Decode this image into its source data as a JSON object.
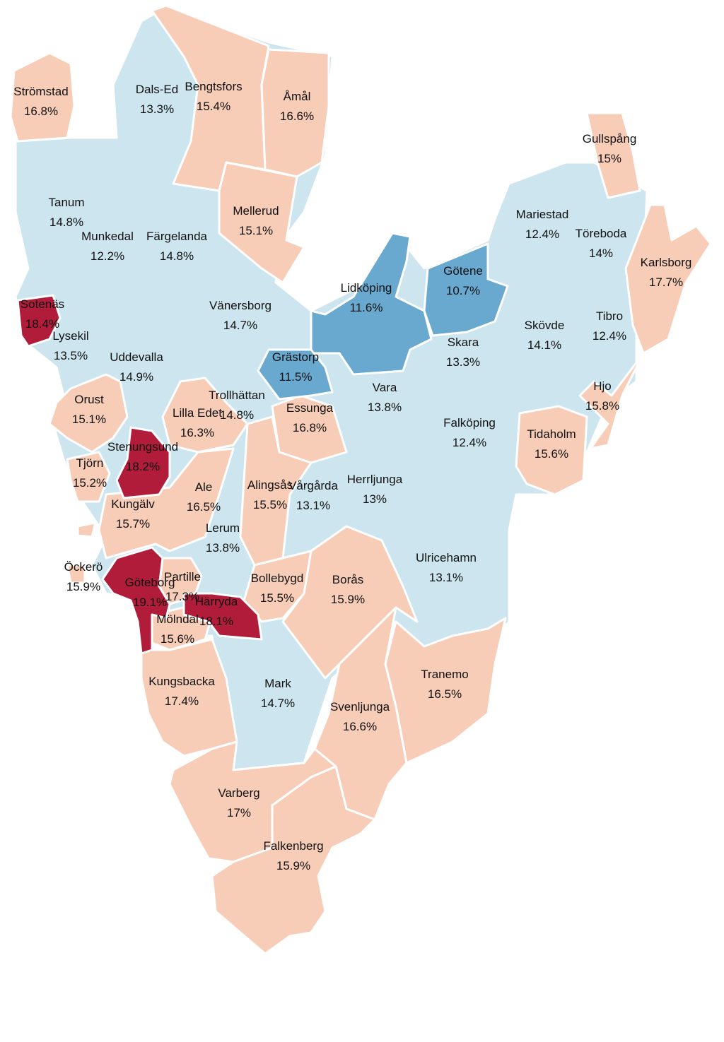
{
  "colors": {
    "very_high": "#b01c39",
    "high": "#f8cdb8",
    "low": "#cce5ee",
    "very_low": "#69a9cf",
    "label": "#111111",
    "background": "#ffffff"
  },
  "municipalities": [
    {
      "id": "stromstad",
      "name": "Strömstad",
      "value": "16.8%",
      "tier": "high"
    },
    {
      "id": "dalsed",
      "name": "Dals-Ed",
      "value": "13.3%",
      "tier": "low"
    },
    {
      "id": "bengtsfors",
      "name": "Bengtsfors",
      "value": "15.4%",
      "tier": "high"
    },
    {
      "id": "amal",
      "name": "Åmål",
      "value": "16.6%",
      "tier": "high"
    },
    {
      "id": "gullspang",
      "name": "Gullspång",
      "value": "15%",
      "tier": "high"
    },
    {
      "id": "tanum",
      "name": "Tanum",
      "value": "14.8%",
      "tier": "low"
    },
    {
      "id": "munkedal",
      "name": "Munkedal",
      "value": "12.2%",
      "tier": "low"
    },
    {
      "id": "fargelanda",
      "name": "Färgelanda",
      "value": "14.8%",
      "tier": "low"
    },
    {
      "id": "mellerud",
      "name": "Mellerud",
      "value": "15.1%",
      "tier": "high"
    },
    {
      "id": "mariestad",
      "name": "Mariestad",
      "value": "12.4%",
      "tier": "low"
    },
    {
      "id": "toreboda",
      "name": "Töreboda",
      "value": "14%",
      "tier": "low"
    },
    {
      "id": "karlsborg",
      "name": "Karlsborg",
      "value": "17.7%",
      "tier": "high"
    },
    {
      "id": "sotenas",
      "name": "Sotenäs",
      "value": "18.4%",
      "tier": "very_high"
    },
    {
      "id": "lysekil",
      "name": "Lysekil",
      "value": "13.5%",
      "tier": "low"
    },
    {
      "id": "vanersborg",
      "name": "Vänersborg",
      "value": "14.7%",
      "tier": "low"
    },
    {
      "id": "lidkoping",
      "name": "Lidköping",
      "value": "11.6%",
      "tier": "very_low"
    },
    {
      "id": "gotene",
      "name": "Götene",
      "value": "10.7%",
      "tier": "very_low"
    },
    {
      "id": "tibro",
      "name": "Tibro",
      "value": "12.4%",
      "tier": "low"
    },
    {
      "id": "skovde",
      "name": "Skövde",
      "value": "14.1%",
      "tier": "low"
    },
    {
      "id": "skara",
      "name": "Skara",
      "value": "13.3%",
      "tier": "low"
    },
    {
      "id": "uddevalla",
      "name": "Uddevalla",
      "value": "14.9%",
      "tier": "low"
    },
    {
      "id": "grastorp",
      "name": "Grästorp",
      "value": "11.5%",
      "tier": "very_low"
    },
    {
      "id": "vara",
      "name": "Vara",
      "value": "13.8%",
      "tier": "low"
    },
    {
      "id": "hjo",
      "name": "Hjo",
      "value": "15.8%",
      "tier": "high"
    },
    {
      "id": "orust",
      "name": "Orust",
      "value": "15.1%",
      "tier": "high"
    },
    {
      "id": "trollhattan",
      "name": "Trollhättan",
      "value": "14.8%",
      "tier": "low"
    },
    {
      "id": "lillaedet",
      "name": "Lilla Edet",
      "value": "16.3%",
      "tier": "high"
    },
    {
      "id": "essunga",
      "name": "Essunga",
      "value": "16.8%",
      "tier": "high"
    },
    {
      "id": "falkoping",
      "name": "Falköping",
      "value": "12.4%",
      "tier": "low"
    },
    {
      "id": "tidaholm",
      "name": "Tidaholm",
      "value": "15.6%",
      "tier": "high"
    },
    {
      "id": "stenungsund",
      "name": "Stenungsund",
      "value": "18.2%",
      "tier": "very_high"
    },
    {
      "id": "tjorn",
      "name": "Tjörn",
      "value": "15.2%",
      "tier": "high"
    },
    {
      "id": "ale",
      "name": "Ale",
      "value": "16.5%",
      "tier": "high"
    },
    {
      "id": "alingsas",
      "name": "Alingsås",
      "value": "15.5%",
      "tier": "high"
    },
    {
      "id": "vargarda",
      "name": "Vårgårda",
      "value": "13.1%",
      "tier": "low"
    },
    {
      "id": "herrljunga",
      "name": "Herrljunga",
      "value": "13%",
      "tier": "low"
    },
    {
      "id": "kungalv",
      "name": "Kungälv",
      "value": "15.7%",
      "tier": "high"
    },
    {
      "id": "lerum",
      "name": "Lerum",
      "value": "13.8%",
      "tier": "low"
    },
    {
      "id": "ulricehamn",
      "name": "Ulricehamn",
      "value": "13.1%",
      "tier": "low"
    },
    {
      "id": "ockero",
      "name": "Öckerö",
      "value": "15.9%",
      "tier": "high"
    },
    {
      "id": "goteborg",
      "name": "Göteborg",
      "value": "19.1%",
      "tier": "very_high"
    },
    {
      "id": "partille",
      "name": "Partille",
      "value": "17.3%",
      "tier": "high"
    },
    {
      "id": "bollebygd",
      "name": "Bollebygd",
      "value": "15.5%",
      "tier": "high"
    },
    {
      "id": "boras",
      "name": "Borås",
      "value": "15.9%",
      "tier": "high"
    },
    {
      "id": "harryda",
      "name": "Härryda",
      "value": "18.1%",
      "tier": "very_high"
    },
    {
      "id": "molndal",
      "name": "Mölndal",
      "value": "15.6%",
      "tier": "high"
    },
    {
      "id": "kungsbacka",
      "name": "Kungsbacka",
      "value": "17.4%",
      "tier": "high"
    },
    {
      "id": "mark",
      "name": "Mark",
      "value": "14.7%",
      "tier": "low"
    },
    {
      "id": "tranemo",
      "name": "Tranemo",
      "value": "16.5%",
      "tier": "high"
    },
    {
      "id": "svenljunga",
      "name": "Svenljunga",
      "value": "16.6%",
      "tier": "high"
    },
    {
      "id": "varberg",
      "name": "Varberg",
      "value": "17%",
      "tier": "high"
    },
    {
      "id": "falkenberg",
      "name": "Falkenberg",
      "value": "15.9%",
      "tier": "high"
    }
  ]
}
